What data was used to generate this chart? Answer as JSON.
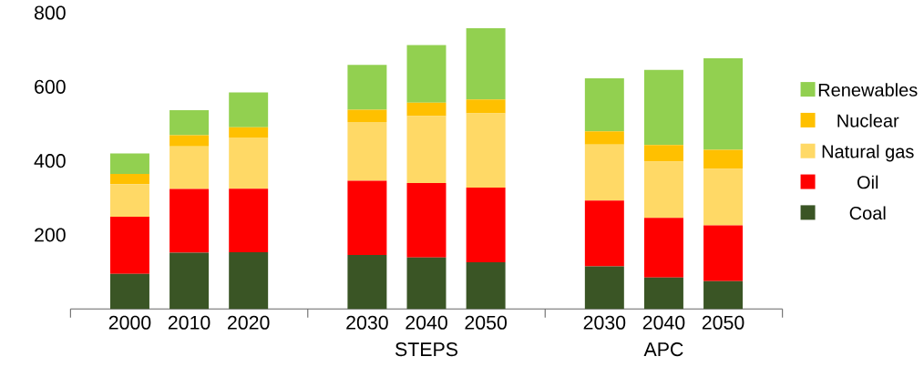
{
  "chart_data": {
    "type": "bar",
    "stacked": true,
    "categories": [
      "2000",
      "2010",
      "2020",
      null,
      "2030",
      "2040",
      "2050",
      null,
      "2030",
      "2040",
      "2050"
    ],
    "series": [
      {
        "name": "Coal",
        "color": "#3a5525",
        "values": [
          95,
          152,
          153,
          null,
          146,
          139,
          126,
          null,
          115,
          85,
          75
        ]
      },
      {
        "name": "Oil",
        "color": "#ff0000",
        "values": [
          154,
          172,
          172,
          null,
          200,
          201,
          202,
          null,
          178,
          161,
          151
        ]
      },
      {
        "name": "Natural gas",
        "color": "#ffd966",
        "values": [
          88,
          115,
          138,
          null,
          159,
          181,
          200,
          null,
          151,
          152,
          152
        ]
      },
      {
        "name": "Nuclear",
        "color": "#ffc000",
        "values": [
          28,
          30,
          28,
          null,
          33,
          36,
          38,
          null,
          36,
          45,
          52
        ]
      },
      {
        "name": "Renewables",
        "color": "#92d050",
        "values": [
          55,
          68,
          94,
          null,
          121,
          156,
          192,
          null,
          143,
          203,
          247
        ]
      }
    ],
    "ylim": [
      0,
      800
    ],
    "yticks": [
      200,
      400,
      600,
      800
    ],
    "annotations": [
      "STEPS",
      "APC"
    ],
    "legend": "right",
    "grid": false
  }
}
